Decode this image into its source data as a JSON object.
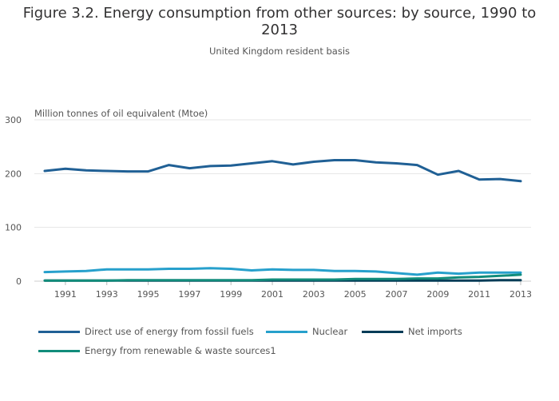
{
  "title_line1": "Figure 3.2. Energy consumption from other sources: by source, 1990 to",
  "title_line2": "2013",
  "subtitle": "United Kingdom resident basis",
  "chart_data": {
    "type": "line",
    "title": "Figure 3.2. Energy consumption from other sources: by source, 1990 to 2013",
    "subtitle": "United Kingdom resident basis",
    "ylabel": "Million tonnes of oil equivalent (Mtoe)",
    "xlabel": "",
    "ylim": [
      0,
      300
    ],
    "yticks": [
      0,
      100,
      200,
      300
    ],
    "xticks": [
      "1991",
      "1993",
      "1995",
      "1997",
      "1999",
      "2001",
      "2003",
      "2005",
      "2007",
      "2009",
      "2011",
      "2013"
    ],
    "grid": true,
    "legend_position": "bottom",
    "x": [
      1990,
      1991,
      1992,
      1993,
      1994,
      1995,
      1996,
      1997,
      1998,
      1999,
      2000,
      2001,
      2002,
      2003,
      2004,
      2005,
      2006,
      2007,
      2008,
      2009,
      2010,
      2011,
      2012,
      2013
    ],
    "series": [
      {
        "name": "Direct use of energy from fossil fuels",
        "color": "#206095",
        "values": [
          205,
          209,
          206,
          205,
          204,
          204,
          216,
          210,
          214,
          215,
          219,
          223,
          217,
          222,
          225,
          225,
          221,
          219,
          216,
          198,
          205,
          189,
          190,
          186
        ]
      },
      {
        "name": "Nuclear",
        "color": "#27a0cc",
        "values": [
          17,
          18,
          19,
          22,
          22,
          22,
          23,
          23,
          24,
          23,
          20,
          22,
          21,
          21,
          19,
          19,
          18,
          15,
          12,
          16,
          14,
          16,
          16,
          16
        ]
      },
      {
        "name": "Net imports",
        "color": "#003c57",
        "values": [
          1,
          1,
          1,
          1,
          1,
          1,
          1,
          1,
          1,
          1,
          1,
          1,
          1,
          1,
          1,
          1,
          1,
          1,
          1,
          1,
          1,
          1,
          2,
          2
        ]
      },
      {
        "name": "Energy from renewable & waste sources1",
        "color": "#118c7b",
        "values": [
          1,
          1,
          1,
          1,
          2,
          2,
          2,
          2,
          2,
          2,
          2,
          3,
          3,
          3,
          3,
          4,
          4,
          4,
          5,
          5,
          7,
          8,
          10,
          12
        ]
      }
    ]
  }
}
